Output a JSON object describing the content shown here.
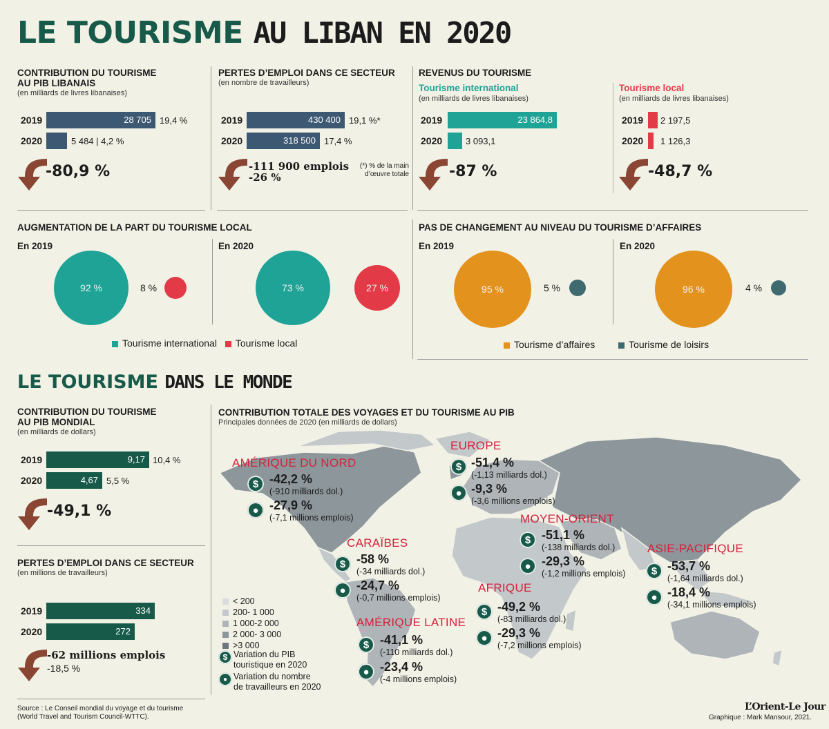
{
  "title": {
    "part1": "LE TOURISME",
    "part2": "AU LIBAN EN 2020"
  },
  "pib": {
    "title": "CONTRIBUTION DU TOURISME\nAU PIB LIBANAIS",
    "sub": "(en milliards de livres libanaises)",
    "rows": [
      {
        "year": "2019",
        "bar": "28 705",
        "pct": "19,4 %"
      },
      {
        "year": "2020",
        "bar": "",
        "pct": "5 484 | 4,2 %"
      }
    ],
    "change": "-80,9 %"
  },
  "emploi": {
    "title": "PERTES D’EMPLOI DANS CE SECTEUR",
    "sub": "(en nombre de travailleurs)",
    "rows": [
      {
        "year": "2019",
        "bar": "430 400",
        "pct": "19,1 %*"
      },
      {
        "year": "2020",
        "bar": "318 500",
        "pct": "17,4 %"
      }
    ],
    "change1": "-111 900 emplois",
    "change2": "-26 %",
    "note": "(*) % de la main\nd’œuvre totale"
  },
  "revenus": {
    "title": "REVENUS DU TOURISME",
    "intl": {
      "label": "Tourisme international",
      "sub": "(en milliards de livres libanaises)",
      "v2019": "23 864,8",
      "v2020": "3 093,1",
      "change": "-87 %"
    },
    "local": {
      "label": "Tourisme local",
      "sub": "(en milliards de livres libanaises)",
      "v2019": "2 197,5",
      "v2020": "1 126,3",
      "change": "-48,7 %"
    },
    "y2019": "2019",
    "y2020": "2020"
  },
  "local_share": {
    "title": "AUGMENTATION DE LA PART DU TOURISME LOCAL",
    "y2019": "En 2019",
    "y2020": "En 2020",
    "big2019": "92 %",
    "small2019": "8 %",
    "big2020": "73 %",
    "small2020": "27 %",
    "legend1": "Tourisme international",
    "legend2": "Tourisme local"
  },
  "affaires": {
    "title": "PAS DE CHANGEMENT AU NIVEAU DU TOURISME D’AFFAIRES",
    "y2019": "En 2019",
    "y2020": "En 2020",
    "big2019": "95 %",
    "small2019": "5 %",
    "big2020": "96 %",
    "small2020": "4 %",
    "legend1": "Tourisme d’affaires",
    "legend2": "Tourisme de loisirs"
  },
  "title2": {
    "part1": "LE TOURISME",
    "part2": "DANS LE MONDE"
  },
  "monde_pib": {
    "title": "CONTRIBUTION DU TOURISME\nAU PIB MONDIAL",
    "sub": "(en milliards de dollars)",
    "rows": [
      {
        "year": "2019",
        "bar": "9,17",
        "pct": "10,4 %"
      },
      {
        "year": "2020",
        "bar": "4,67",
        "pct": "5,5 %"
      }
    ],
    "change": "-49,1 %"
  },
  "monde_emploi": {
    "title": "PERTES D’EMPLOI DANS CE SECTEUR",
    "sub": "(en millions de travailleurs)",
    "rows": [
      {
        "year": "2019",
        "bar": "334"
      },
      {
        "year": "2020",
        "bar": "272"
      }
    ],
    "change1": "-62 millions emplois",
    "change2": "-18,5 %"
  },
  "map": {
    "title": "CONTRIBUTION TOTALE DES VOYAGES ET DU TOURISME AU PIB",
    "sub": "Principales données de 2020 (en milliards de dollars)",
    "regions": [
      {
        "name": "AMÉRIQUE DU NORD",
        "pib": "-42,2 %",
        "pib_sub": "(-910 milliards dol.)",
        "emp": "-27,9 %",
        "emp_sub": "(-7,1 millions emplois)"
      },
      {
        "name": "EUROPE",
        "pib": "-51,4 %",
        "pib_sub": "(-1,13 milliards dol.)",
        "emp": "-9,3 %",
        "emp_sub": "(-3,6 millions emplois)"
      },
      {
        "name": "CARAÏBES",
        "pib": "-58 %",
        "pib_sub": "(-34 milliards dol.)",
        "emp": "-24,7 %",
        "emp_sub": "(-0,7 millions emplois)"
      },
      {
        "name": "MOYEN-ORIENT",
        "pib": "-51,1 %",
        "pib_sub": "(-138 milliards dol.)",
        "emp": "-29,3 %",
        "emp_sub": "(-1,2 millions emplois)"
      },
      {
        "name": "ASIE-PACIFIQUE",
        "pib": "-53,7 %",
        "pib_sub": "(-1,64 milliards dol.)",
        "emp": "-18,4 %",
        "emp_sub": "(-34,1 millions emplois)"
      },
      {
        "name": "AFRIQUE",
        "pib": "-49,2 %",
        "pib_sub": "(-83 milliards dol.)",
        "emp": "-29,3 %",
        "emp_sub": "(-7,2 millions emplois)"
      },
      {
        "name": "AMÉRIQUE LATINE",
        "pib": "-41,1 %",
        "pib_sub": "(-110 milliards dol.)",
        "emp": "-23,4 %",
        "emp_sub": "(-4 millions emplois)"
      }
    ],
    "legend": [
      "< 200",
      "200- 1 000",
      "1 000-2 000",
      "2 000- 3 000",
      ">3 000"
    ],
    "legend_pib": "Variation du PIB\ntouristique en 2020",
    "legend_emp": "Variation du nombre\nde travailleurs en 2020"
  },
  "footer": {
    "source": "Source : Le Conseil mondial du voyage et du tourisme\n(World Travel and Tourism Council-WTTC).",
    "brand": "L’Orient-Le Jour",
    "credit": "Graphique : Mark Mansour, 2021."
  },
  "colors": {
    "navy": "#3d5872",
    "teal": "#1fa396",
    "red": "#e33a48",
    "orange": "#e4921e",
    "slate": "#3f6a6f",
    "green": "#175a4a",
    "arrow": "#8a4633"
  },
  "chart_data": [
    {
      "type": "bar",
      "title": "CONTRIBUTION DU TOURISME AU PIB LIBANAIS",
      "categories": [
        "2019",
        "2020"
      ],
      "values": [
        28705,
        5484
      ],
      "shares": [
        "19,4 %",
        "4,2 %"
      ]
    },
    {
      "type": "bar",
      "title": "PERTES D’EMPLOI DANS CE SECTEUR",
      "categories": [
        "2019",
        "2020"
      ],
      "values": [
        430400,
        318500
      ],
      "shares": [
        "19,1 %*",
        "17,4 %"
      ]
    },
    {
      "type": "bar",
      "title": "Tourisme international",
      "categories": [
        "2019",
        "2020"
      ],
      "values": [
        23864.8,
        3093.1
      ]
    },
    {
      "type": "bar",
      "title": "Tourisme local",
      "categories": [
        "2019",
        "2020"
      ],
      "values": [
        2197.5,
        1126.3
      ]
    },
    {
      "type": "pie",
      "title": "En 2019",
      "labels": [
        "Tourisme international",
        "Tourisme local"
      ],
      "values": [
        92,
        8
      ]
    },
    {
      "type": "pie",
      "title": "En 2020",
      "labels": [
        "Tourisme international",
        "Tourisme local"
      ],
      "values": [
        73,
        27
      ]
    },
    {
      "type": "pie",
      "title": "En 2019",
      "labels": [
        "Tourisme d’affaires",
        "Tourisme de loisirs"
      ],
      "values": [
        95,
        5
      ]
    },
    {
      "type": "pie",
      "title": "En 2020",
      "labels": [
        "Tourisme d’affaires",
        "Tourisme de loisirs"
      ],
      "values": [
        96,
        4
      ]
    },
    {
      "type": "bar",
      "title": "CONTRIBUTION DU TOURISME AU PIB MONDIAL",
      "categories": [
        "2019",
        "2020"
      ],
      "values": [
        9.17,
        4.67
      ],
      "shares": [
        "10,4 %",
        "5,5 %"
      ]
    },
    {
      "type": "bar",
      "title": "PERTES D’EMPLOI DANS CE SECTEUR",
      "categories": [
        "2019",
        "2020"
      ],
      "values": [
        334,
        272
      ]
    }
  ]
}
